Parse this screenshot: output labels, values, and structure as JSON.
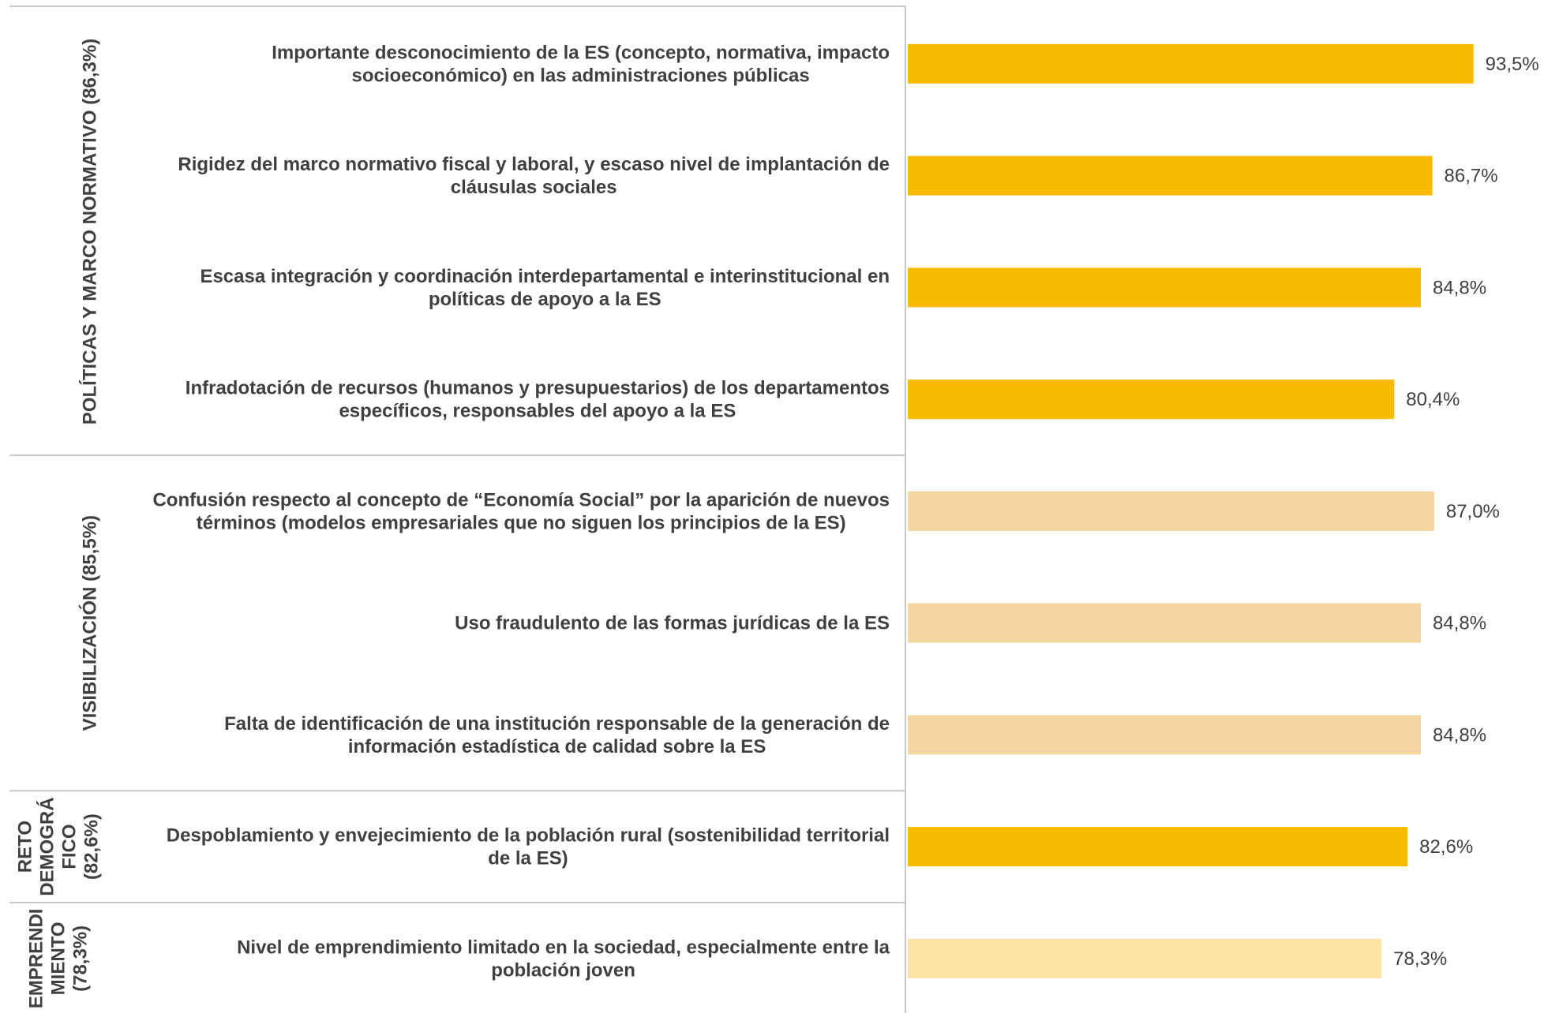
{
  "chart_data": {
    "type": "bar",
    "orientation": "horizontal",
    "groups": [
      {
        "label_lines": [
          "POLÍTICAS Y MARCO NORMATIVO (86,3%)"
        ],
        "rows": [
          0,
          1,
          2,
          3
        ]
      },
      {
        "label_lines": [
          "VISIBILIZACIÓN (85,5%)"
        ],
        "rows": [
          4,
          5,
          6
        ]
      },
      {
        "label_lines": [
          "RETO",
          "DEMOGRÁ",
          "FICO",
          "(82,6%)"
        ],
        "rows": [
          7
        ]
      },
      {
        "label_lines": [
          "EMPRENDI",
          "MIENTO",
          "(78,3%)"
        ],
        "rows": [
          8
        ]
      }
    ],
    "categories": [
      [
        "Importante desconocimiento de la ES (concepto, normativa, impacto",
        "socioeconómico) en las administraciones públicas"
      ],
      [
        "Rigidez del marco normativo fiscal y laboral, y escaso nivel de implantación de",
        "cláusulas sociales"
      ],
      [
        "Escasa integración y coordinación interdepartamental e interinstitucional en",
        "políticas de apoyo a la ES"
      ],
      [
        "Infradotación de recursos (humanos y presupuestarios) de los departamentos",
        "específicos, responsables del apoyo a la ES"
      ],
      [
        "Confusión respecto al concepto de “Economía Social” por la aparición de nuevos",
        "términos (modelos empresariales que no siguen los principios de la ES)"
      ],
      [
        "Uso fraudulento de las formas jurídicas de la ES"
      ],
      [
        "Falta de identificación de una institución responsable de la generación de",
        "información estadística de calidad sobre la ES"
      ],
      [
        "Despoblamiento y envejecimiento de la población rural (sostenibilidad territorial",
        "de la ES)"
      ],
      [
        "Nivel de emprendimiento limitado en la sociedad, especialmente entre la",
        "población joven"
      ]
    ],
    "values": [
      93.5,
      86.7,
      84.8,
      80.4,
      87.0,
      84.8,
      84.8,
      82.6,
      78.3
    ],
    "value_labels": [
      "93,5%",
      "86,7%",
      "84,8%",
      "80,4%",
      "87,0%",
      "84,8%",
      "84,8%",
      "82,6%",
      "78,3%"
    ],
    "bar_colors": [
      "#f9bb00",
      "#f9bb00",
      "#f9bb00",
      "#f9bb00",
      "#f6d6a0",
      "#f6d6a0",
      "#f6d6a0",
      "#f9bb00",
      "#fbe3a3"
    ],
    "xlim": [
      0,
      100
    ],
    "grid": false,
    "legend": "none"
  }
}
